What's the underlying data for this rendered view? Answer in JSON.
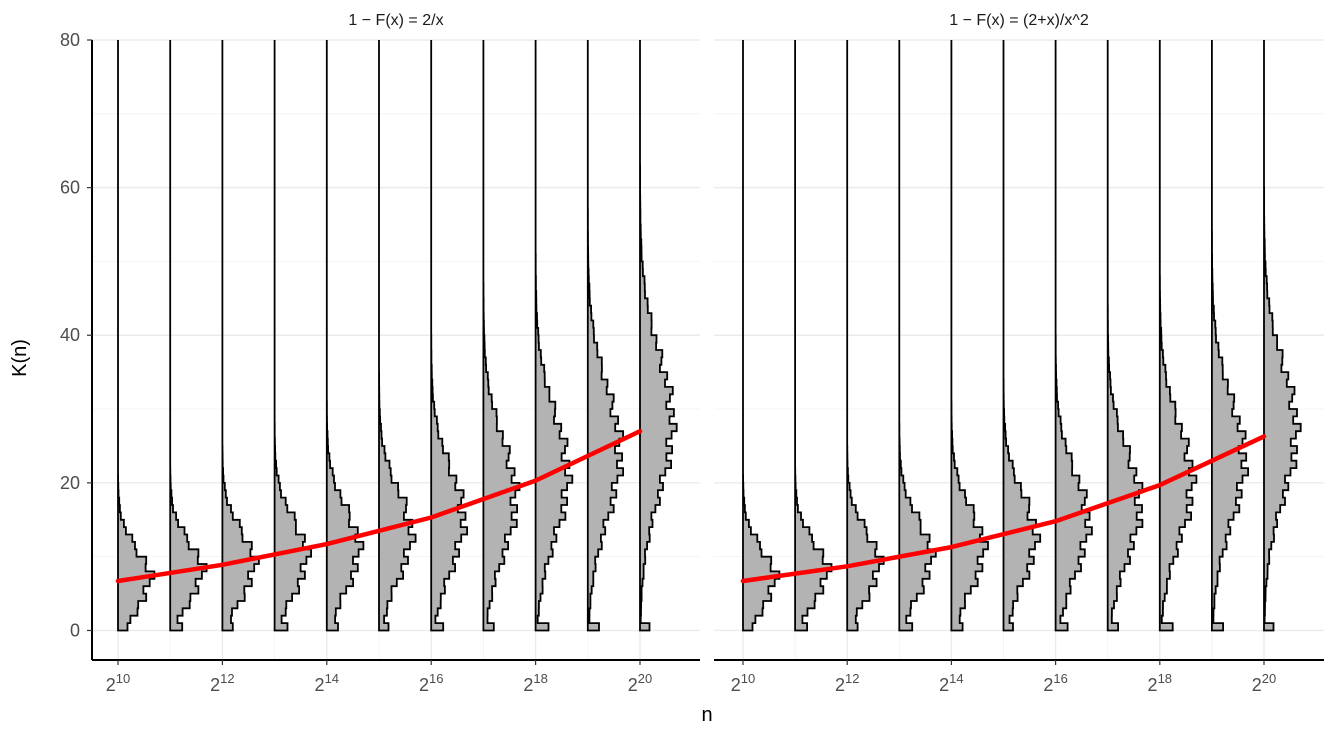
{
  "chart_data": [
    {
      "type": "histogram-violin",
      "title": "1 − F(x) = 2/x",
      "xlabel": "n",
      "ylabel": "K(n)",
      "ylim": [
        -4,
        80
      ],
      "x_scale": "log2",
      "x_ticks": [
        10,
        12,
        14,
        16,
        18,
        20
      ],
      "x_tick_labels": [
        {
          "base": "2",
          "exp": "10"
        },
        {
          "base": "2",
          "exp": "12"
        },
        {
          "base": "2",
          "exp": "14"
        },
        {
          "base": "2",
          "exp": "16"
        },
        {
          "base": "2",
          "exp": "18"
        },
        {
          "base": "2",
          "exp": "20"
        }
      ],
      "y_ticks": [
        0,
        20,
        40,
        60,
        80
      ],
      "grid": true,
      "histogram_fill": "#b3b3b3",
      "histogram_stroke": "#000000",
      "distributions": [
        {
          "n_log2": 10,
          "k_min": 0,
          "k_max": 79,
          "mean": 7,
          "sd": 4
        },
        {
          "n_log2": 11,
          "k_min": 0,
          "k_max": 79,
          "mean": 8,
          "sd": 4
        },
        {
          "n_log2": 12,
          "k_min": 0,
          "k_max": 79,
          "mean": 9,
          "sd": 4.5
        },
        {
          "n_log2": 13,
          "k_min": 0,
          "k_max": 79,
          "mean": 10,
          "sd": 5
        },
        {
          "n_log2": 14,
          "k_min": 0,
          "k_max": 79,
          "mean": 11,
          "sd": 5.5
        },
        {
          "n_log2": 15,
          "k_min": 0,
          "k_max": 79,
          "mean": 13,
          "sd": 6
        },
        {
          "n_log2": 16,
          "k_min": 0,
          "k_max": 79,
          "mean": 15,
          "sd": 7
        },
        {
          "n_log2": 17,
          "k_min": 0,
          "k_max": 79,
          "mean": 18,
          "sd": 8
        },
        {
          "n_log2": 18,
          "k_min": 0,
          "k_max": 79,
          "mean": 21,
          "sd": 8.5
        },
        {
          "n_log2": 19,
          "k_min": 0,
          "k_max": 79,
          "mean": 24,
          "sd": 9
        },
        {
          "n_log2": 20,
          "k_min": 0,
          "k_max": 79,
          "mean": 28,
          "sd": 9.5
        }
      ],
      "trend_line": {
        "color": "#ff0000",
        "x": [
          10,
          12,
          14,
          16,
          18,
          20
        ],
        "y": [
          6.7,
          8.9,
          11.7,
          15.3,
          20.3,
          27.0
        ]
      }
    },
    {
      "type": "histogram-violin",
      "title": "1 − F(x) = (2+x)/x^2",
      "xlabel": "n",
      "ylabel": "K(n)",
      "ylim": [
        -4,
        80
      ],
      "x_scale": "log2",
      "x_ticks": [
        10,
        12,
        14,
        16,
        18,
        20
      ],
      "x_tick_labels": [
        {
          "base": "2",
          "exp": "10"
        },
        {
          "base": "2",
          "exp": "12"
        },
        {
          "base": "2",
          "exp": "14"
        },
        {
          "base": "2",
          "exp": "16"
        },
        {
          "base": "2",
          "exp": "18"
        },
        {
          "base": "2",
          "exp": "20"
        }
      ],
      "y_ticks": [
        0,
        20,
        40,
        60,
        80
      ],
      "grid": true,
      "histogram_fill": "#b3b3b3",
      "histogram_stroke": "#000000",
      "distributions": [
        {
          "n_log2": 10,
          "k_min": 0,
          "k_max": 79,
          "mean": 7,
          "sd": 4
        },
        {
          "n_log2": 11,
          "k_min": 0,
          "k_max": 79,
          "mean": 8,
          "sd": 4
        },
        {
          "n_log2": 12,
          "k_min": 0,
          "k_max": 79,
          "mean": 9,
          "sd": 4.5
        },
        {
          "n_log2": 13,
          "k_min": 0,
          "k_max": 79,
          "mean": 10,
          "sd": 5
        },
        {
          "n_log2": 14,
          "k_min": 0,
          "k_max": 79,
          "mean": 11,
          "sd": 5.5
        },
        {
          "n_log2": 15,
          "k_min": 0,
          "k_max": 79,
          "mean": 12.5,
          "sd": 6
        },
        {
          "n_log2": 16,
          "k_min": 0,
          "k_max": 79,
          "mean": 14.5,
          "sd": 7
        },
        {
          "n_log2": 17,
          "k_min": 0,
          "k_max": 79,
          "mean": 17,
          "sd": 7.5
        },
        {
          "n_log2": 18,
          "k_min": 0,
          "k_max": 79,
          "mean": 20,
          "sd": 8
        },
        {
          "n_log2": 19,
          "k_min": 0,
          "k_max": 79,
          "mean": 23,
          "sd": 8.5
        },
        {
          "n_log2": 20,
          "k_min": 0,
          "k_max": 79,
          "mean": 27,
          "sd": 9
        }
      ],
      "trend_line": {
        "color": "#ff0000",
        "x": [
          10,
          12,
          14,
          16,
          18,
          20
        ],
        "y": [
          6.7,
          8.7,
          11.3,
          14.8,
          19.7,
          26.3
        ]
      }
    }
  ]
}
